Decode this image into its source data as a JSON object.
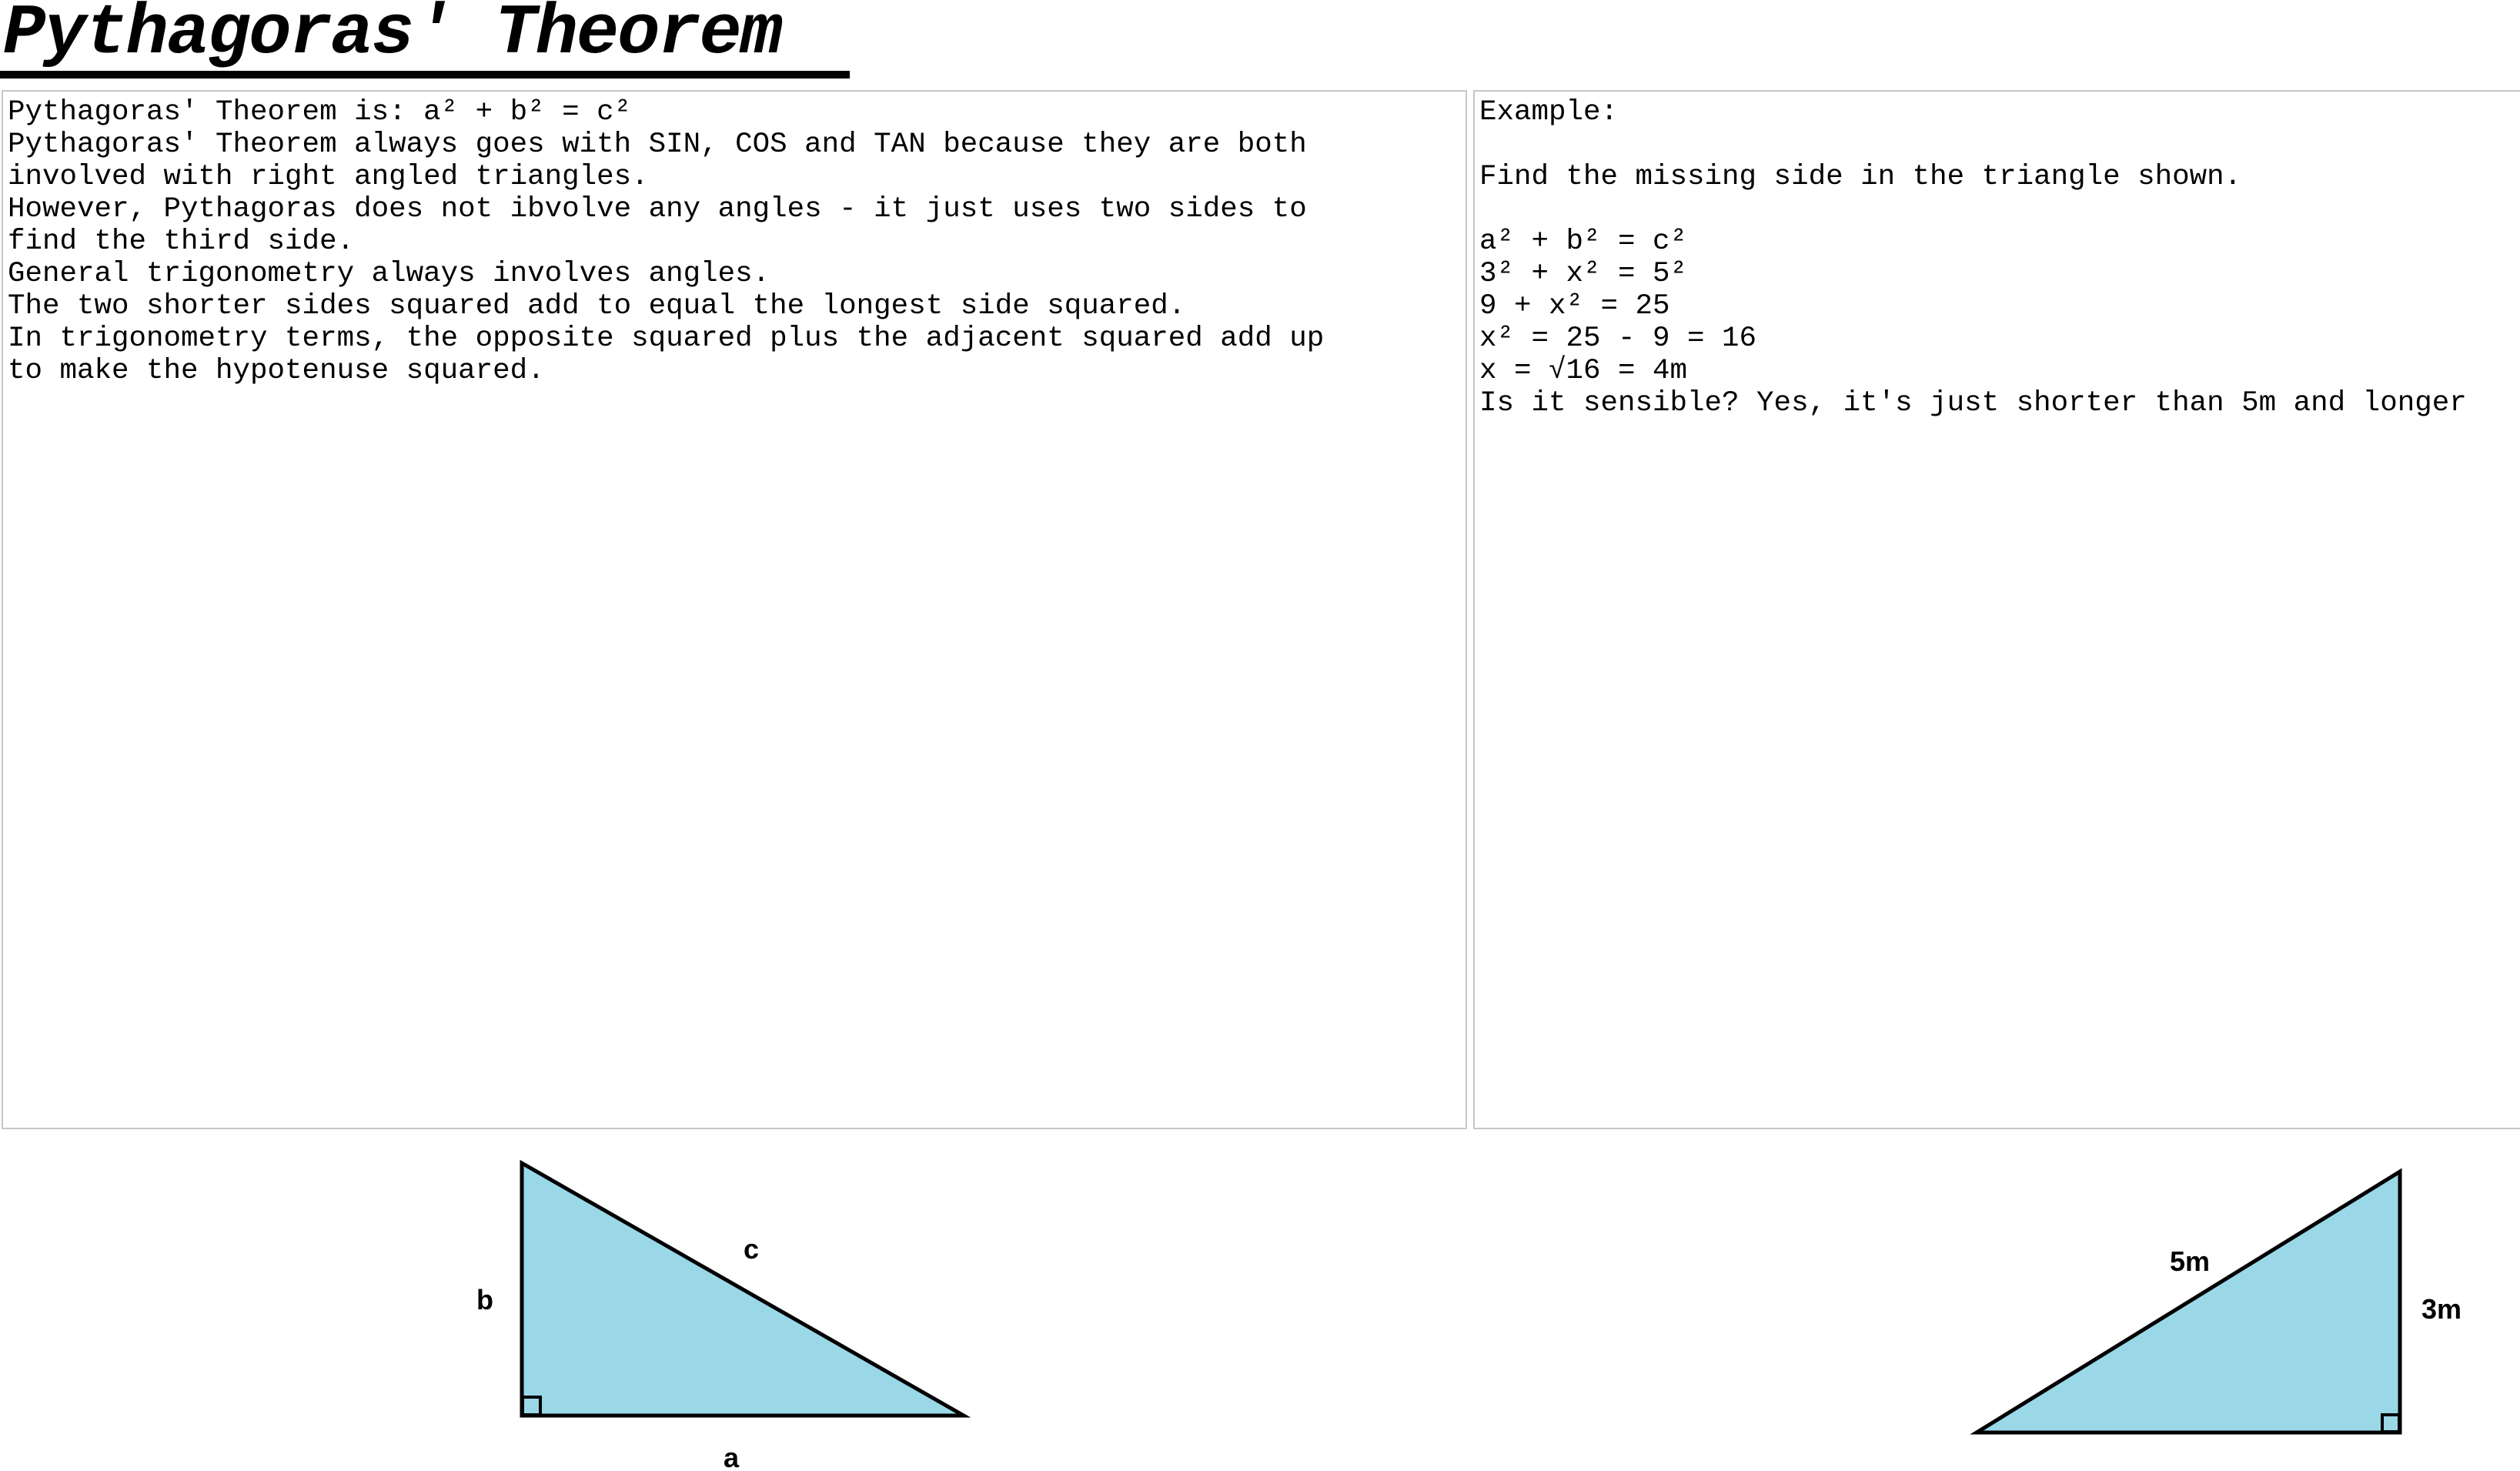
{
  "title": "Pythagoras' Theorem",
  "notes_box": {
    "text": "Pythagoras' Theorem is: a² + b² = c²\nPythagoras' Theorem always goes with SIN, COS and TAN because they are both\ninvolved with right angled triangles.\nHowever, Pythagoras does not ibvolve any angles - it just uses two sides to\nfind the third side.\nGeneral trigonometry always involves angles.\nThe two shorter sides squared add to equal the longest side squared.\nIn trigonometry terms, the opposite squared plus the adjacent squared add up\nto make the hypotenuse squared."
  },
  "example_box": {
    "text": "Example:\n\nFind the missing side in the triangle shown.\n\na² + b² = c²\n3² + x² = 5²\n9 + x² = 25\nx² = 25 - 9 = 16\nx = √16 = 4m\nIs it sensible? Yes, it's just shorter than 5m and longer"
  },
  "diagrams": {
    "fill_color": "#9ad8e8",
    "stroke_color": "#000000",
    "general_triangle": {
      "label_a": "a",
      "label_b": "b",
      "label_c": "c"
    },
    "example_triangle": {
      "label_hypotenuse": "5m",
      "label_side": "3m"
    }
  }
}
